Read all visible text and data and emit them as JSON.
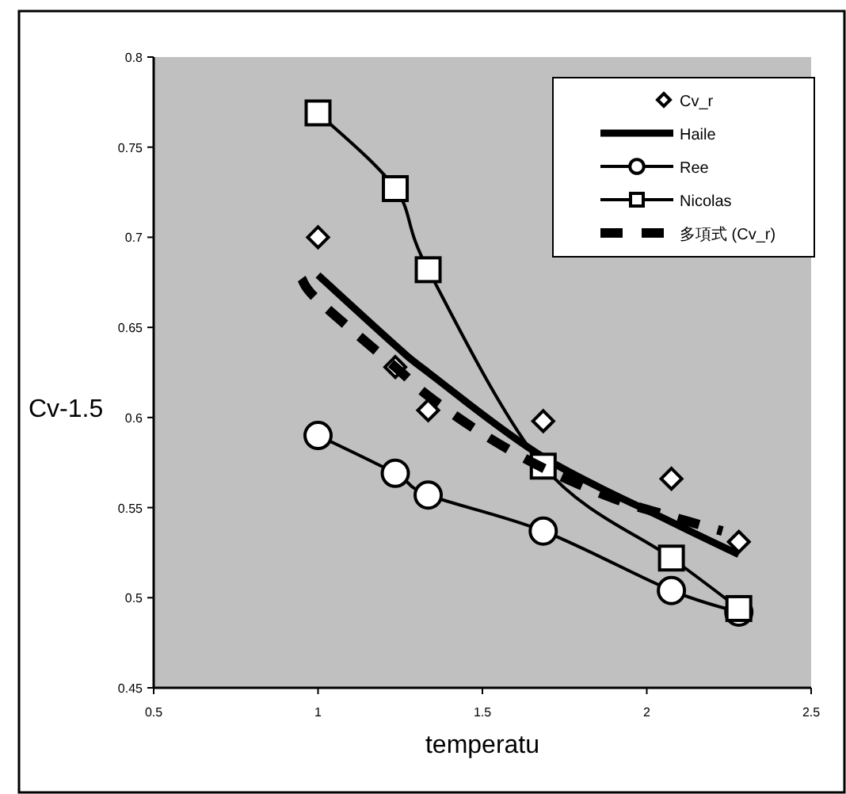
{
  "chart_data": {
    "type": "line",
    "xlabel": "temperatu",
    "ylabel": "Cv-1.5",
    "x": [
      1.0,
      1.235,
      1.335,
      1.685,
      2.075,
      2.28
    ],
    "series": [
      {
        "name": "Cv_r",
        "type": "scatter",
        "color": "#000000",
        "marker": "diamond",
        "values": [
          0.7,
          0.628,
          0.604,
          0.598,
          0.566,
          0.531
        ]
      },
      {
        "name": "Haile",
        "type": "line",
        "color": "#000000",
        "marker": "none",
        "values": [
          0.679,
          0.64,
          0.625,
          0.578,
          0.542,
          0.524
        ]
      },
      {
        "name": "Ree",
        "type": "line",
        "color": "#000000",
        "marker": "circle",
        "values": [
          0.59,
          0.569,
          0.557,
          0.537,
          0.504,
          0.492
        ]
      },
      {
        "name": "Nicolas",
        "type": "line",
        "color": "#000000",
        "marker": "square",
        "values": [
          0.769,
          0.727,
          0.682,
          0.573,
          0.522,
          0.494
        ]
      },
      {
        "name": "多項式 (Cv_r)",
        "type": "line",
        "color": "#000000",
        "marker": "none",
        "line_style": "dashed",
        "x": [
          0.95,
          1.0,
          1.235,
          1.335,
          1.5,
          1.685,
          1.9,
          2.075,
          2.23
        ],
        "values": [
          0.677,
          0.665,
          0.628,
          0.612,
          0.591,
          0.572,
          0.555,
          0.545,
          0.537
        ]
      }
    ],
    "xlim": [
      0.5,
      2.5
    ],
    "ylim": [
      0.45,
      0.8
    ],
    "xticks": [
      {
        "value": 0.5,
        "label": "0.5"
      },
      1,
      {
        "value": 1.5,
        "label": "1.5"
      },
      2,
      {
        "value": 2.5,
        "label": "2.5"
      }
    ],
    "yticks": [
      0.45,
      0.5,
      0.55,
      0.6,
      0.65,
      0.7,
      0.75,
      0.8
    ],
    "grid": false,
    "legend": "top right"
  }
}
